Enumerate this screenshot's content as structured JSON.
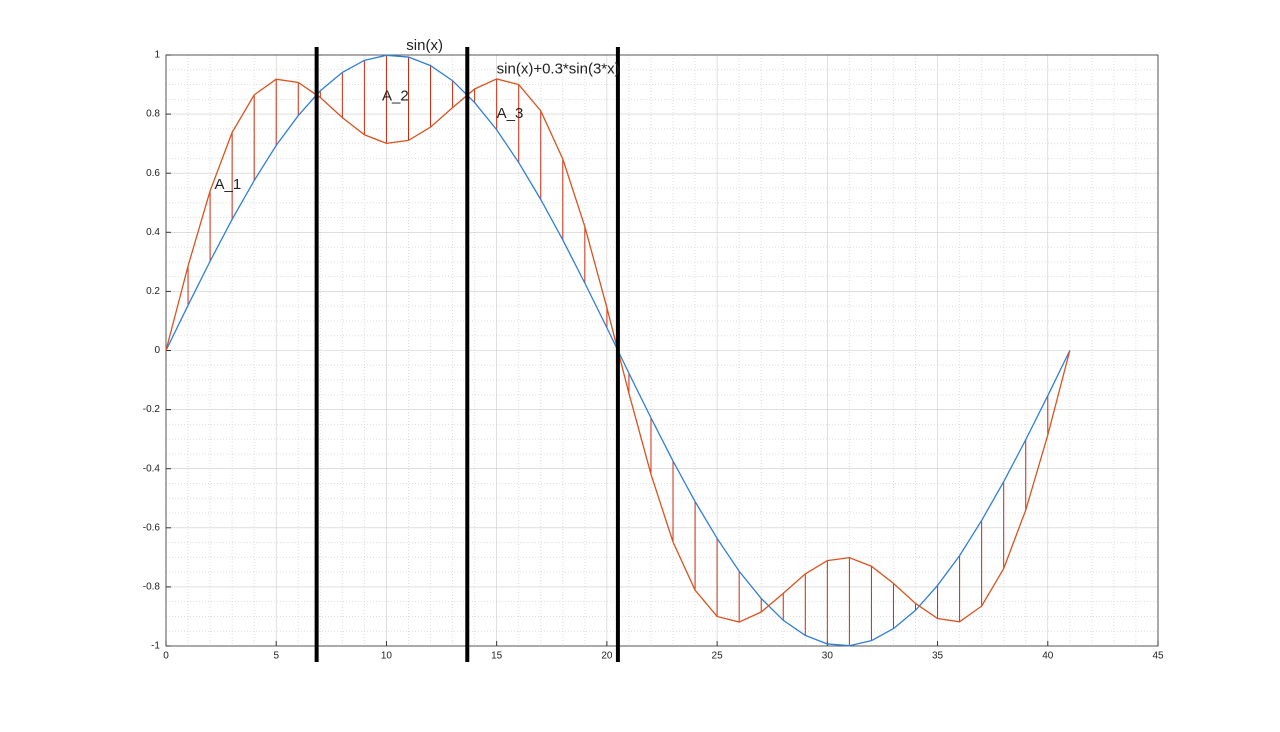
{
  "chart_data": {
    "type": "line",
    "x": [
      0,
      1,
      2,
      3,
      4,
      5,
      6,
      7,
      8,
      9,
      10,
      11,
      12,
      13,
      14,
      15,
      16,
      17,
      18,
      19,
      20,
      21,
      22,
      23,
      24,
      25,
      26,
      27,
      28,
      29,
      30,
      31,
      32,
      33,
      34,
      35,
      36,
      37,
      38,
      39,
      40,
      41
    ],
    "series": [
      {
        "color": "#2f7ed8",
        "values": [
          0,
          0.153,
          0.302,
          0.444,
          0.575,
          0.694,
          0.795,
          0.879,
          0.941,
          0.982,
          0.999,
          0.993,
          0.964,
          0.913,
          0.839,
          0.747,
          0.636,
          0.511,
          0.374,
          0.228,
          0.077,
          -0.077,
          -0.228,
          -0.374,
          -0.511,
          -0.636,
          -0.747,
          -0.839,
          -0.913,
          -0.964,
          -0.993,
          -0.999,
          -0.982,
          -0.941,
          -0.879,
          -0.795,
          -0.694,
          -0.575,
          -0.444,
          -0.302,
          -0.153,
          0
        ]
      },
      {
        "color": "#d9531e",
        "values": [
          0,
          0.286,
          0.54,
          0.738,
          0.865,
          0.918,
          0.907,
          0.856,
          0.788,
          0.73,
          0.701,
          0.711,
          0.756,
          0.822,
          0.885,
          0.919,
          0.9,
          0.811,
          0.648,
          0.419,
          0.145,
          -0.145,
          -0.419,
          -0.648,
          -0.811,
          -0.9,
          -0.919,
          -0.885,
          -0.822,
          -0.756,
          -0.711,
          -0.701,
          -0.73,
          -0.788,
          -0.856,
          -0.907,
          -0.918,
          -0.865,
          -0.738,
          -0.54,
          -0.286,
          0
        ]
      }
    ],
    "hatch_color": "#cc2a10",
    "vlines": [
      6.833,
      13.667,
      20.5
    ],
    "annotations": [
      {
        "text": "sin(x)",
        "x": 10.9,
        "y": 1.03
      },
      {
        "text": "sin(x)+0.3*sin(3*x)",
        "x": 15,
        "y": 0.95
      },
      {
        "text": "A_1",
        "x": 2.2,
        "y": 0.56
      },
      {
        "text": "A_2",
        "x": 9.8,
        "y": 0.86
      },
      {
        "text": "A_3",
        "x": 15,
        "y": 0.8
      }
    ],
    "xlim": [
      0,
      45
    ],
    "xticks": [
      0,
      5,
      10,
      15,
      20,
      25,
      30,
      35,
      40,
      45
    ],
    "ylim": [
      -1,
      1
    ],
    "yticks": [
      -1,
      -0.8,
      -0.6,
      -0.4,
      -0.2,
      0,
      0.2,
      0.4,
      0.6,
      0.8,
      1
    ],
    "grid": true
  }
}
